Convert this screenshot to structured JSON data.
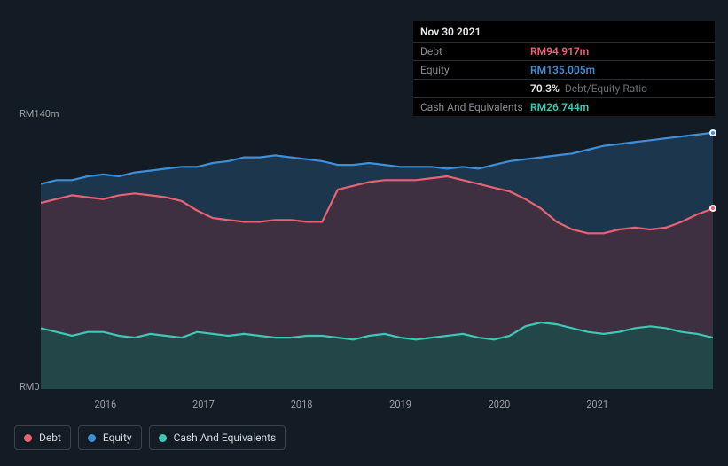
{
  "tooltip": {
    "date": "Nov 30 2021",
    "rows": [
      {
        "label": "Debt",
        "value": "RM94.917m",
        "color": "#e76373"
      },
      {
        "label": "Equity",
        "value": "RM135.005m",
        "color": "#3f8fd6"
      },
      {
        "label": "",
        "value": "70.3%",
        "label2": "Debt/Equity Ratio",
        "color": "#e8e9ea"
      },
      {
        "label": "Cash And Equivalents",
        "value": "RM26.744m",
        "color": "#3cc8b4"
      }
    ]
  },
  "chart": {
    "type": "area",
    "background_color": "#131b25",
    "y_top_label": "RM140m",
    "y_bottom_label": "RM0",
    "ylim": [
      0,
      140
    ],
    "line_width": 2.2,
    "years": [
      "2016",
      "2017",
      "2018",
      "2019",
      "2020",
      "2021"
    ],
    "year_positions_pct": [
      9.6,
      24.2,
      38.8,
      53.5,
      68.2,
      82.8
    ],
    "series": [
      {
        "name": "Equity",
        "stroke": "#3f8fd6",
        "fill": "#1e3b56",
        "fill_opacity": 0.85,
        "y": [
          108,
          110,
          110,
          112,
          113,
          112,
          114,
          115,
          116,
          117,
          117,
          119,
          120,
          122,
          122,
          123,
          122,
          121,
          120,
          118,
          118,
          119,
          118,
          117,
          117,
          117,
          116,
          117,
          116,
          118,
          120,
          121,
          122,
          123,
          124,
          126,
          128,
          129,
          130,
          131,
          132,
          133,
          134,
          135
        ]
      },
      {
        "name": "Debt",
        "stroke": "#e76373",
        "fill": "#4b2f3e",
        "fill_opacity": 0.75,
        "y": [
          98,
          100,
          102,
          101,
          100,
          102,
          103,
          102,
          101,
          99,
          94,
          90,
          89,
          88,
          88,
          89,
          89,
          88,
          88,
          105,
          107,
          109,
          110,
          110,
          110,
          111,
          112,
          110,
          108,
          106,
          104,
          100,
          95,
          88,
          84,
          82,
          82,
          84,
          85,
          84,
          85,
          88,
          92,
          95
        ]
      },
      {
        "name": "Cash And Equivalents",
        "stroke": "#3cc8b4",
        "fill": "#1f4b4a",
        "fill_opacity": 0.85,
        "y": [
          32,
          30,
          28,
          30,
          30,
          28,
          27,
          29,
          28,
          27,
          30,
          29,
          28,
          29,
          28,
          27,
          27,
          28,
          28,
          27,
          26,
          28,
          29,
          27,
          26,
          27,
          28,
          29,
          27,
          26,
          28,
          33,
          35,
          34,
          32,
          30,
          29,
          30,
          32,
          33,
          32,
          30,
          29,
          27
        ]
      }
    ],
    "end_markers": [
      {
        "series": "Equity",
        "color": "#3f8fd6"
      },
      {
        "series": "Debt",
        "color": "#e76373"
      }
    ]
  },
  "legend": [
    {
      "label": "Debt",
      "color": "#e76373"
    },
    {
      "label": "Equity",
      "color": "#3f8fd6"
    },
    {
      "label": "Cash And Equivalents",
      "color": "#3cc8b4"
    }
  ]
}
